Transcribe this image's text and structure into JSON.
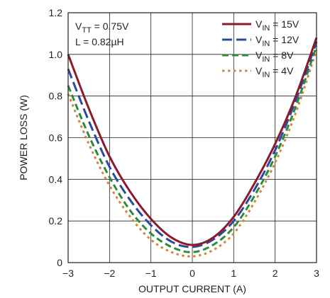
{
  "chart_data": {
    "type": "line",
    "xlabel": "OUTPUT CURRENT (A)",
    "ylabel": "POWER LOSS (W)",
    "xlim": [
      -3,
      3
    ],
    "ylim": [
      0,
      1.2
    ],
    "x_ticks": [
      -3,
      -2,
      -1,
      0,
      1,
      2,
      3
    ],
    "y_ticks": [
      0,
      0.2,
      0.4,
      0.6,
      0.8,
      1.0,
      1.2
    ],
    "x_tick_labels": [
      "−3",
      "−2",
      "−1",
      "0",
      "1",
      "2",
      "3"
    ],
    "y_tick_labels": [
      "0",
      "0.2",
      "0.4",
      "0.6",
      "0.8",
      "1.0",
      "1.2"
    ],
    "grid": true,
    "legend_position": "top-right",
    "annotations": [
      {
        "main": "V",
        "sub": "TT",
        "rest": " = 0.75V"
      },
      {
        "main": "L = 0.82µH",
        "sub": "",
        "rest": ""
      }
    ],
    "series": [
      {
        "label_main": "V",
        "label_sub": "IN",
        "label_rest": " = 15V",
        "color": "#8b1a2f",
        "dash": "solid",
        "x": [
          -3,
          -2.5,
          -2,
          -1.5,
          -1,
          -0.5,
          0,
          0.5,
          1,
          1.5,
          2,
          2.5,
          3
        ],
        "y": [
          1.0,
          0.74,
          0.51,
          0.34,
          0.21,
          0.12,
          0.085,
          0.12,
          0.22,
          0.38,
          0.57,
          0.8,
          1.08
        ]
      },
      {
        "label_main": "V",
        "label_sub": "IN",
        "label_rest": " = 12V",
        "color": "#2a4b9b",
        "dash": "long-dash",
        "x": [
          -3,
          -2.5,
          -2,
          -1.5,
          -1,
          -0.5,
          0,
          0.5,
          1,
          1.5,
          2,
          2.5,
          3
        ],
        "y": [
          0.93,
          0.68,
          0.46,
          0.3,
          0.18,
          0.1,
          0.075,
          0.11,
          0.2,
          0.35,
          0.54,
          0.78,
          1.06
        ]
      },
      {
        "label_main": "V",
        "label_sub": "IN",
        "label_rest": " = 8V",
        "color": "#2e8b3a",
        "dash": "dash",
        "x": [
          -3,
          -2.5,
          -2,
          -1.5,
          -1,
          -0.5,
          0,
          0.5,
          1,
          1.5,
          2,
          2.5,
          3
        ],
        "y": [
          0.85,
          0.61,
          0.41,
          0.25,
          0.14,
          0.075,
          0.05,
          0.085,
          0.17,
          0.32,
          0.51,
          0.75,
          1.04
        ]
      },
      {
        "label_main": "V",
        "label_sub": "IN",
        "label_rest": " = 4V",
        "color": "#d2874a",
        "dash": "dot",
        "x": [
          -3,
          -2.5,
          -2,
          -1.5,
          -1,
          -0.5,
          0,
          0.5,
          1,
          1.5,
          2,
          2.5,
          3
        ],
        "y": [
          0.81,
          0.57,
          0.37,
          0.22,
          0.11,
          0.05,
          0.03,
          0.06,
          0.14,
          0.29,
          0.48,
          0.72,
          1.02
        ]
      }
    ]
  }
}
